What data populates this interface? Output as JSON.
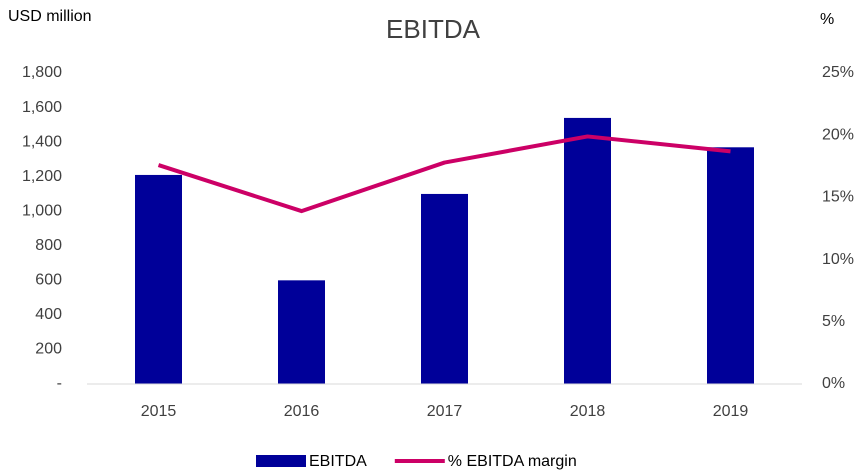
{
  "chart_data": {
    "type": "bar",
    "title": "EBITDA",
    "y_label": "USD million",
    "y2_label": "%",
    "categories": [
      "2015",
      "2016",
      "2017",
      "2018",
      "2019"
    ],
    "series": [
      {
        "name": "EBITDA",
        "type": "bar",
        "color": "#000099",
        "values": [
          1210,
          600,
          1100,
          1540,
          1370
        ]
      },
      {
        "name": "% EBITDA margin",
        "type": "line",
        "axis": "y2",
        "color": "#cc0066",
        "values": [
          17.6,
          13.9,
          17.8,
          19.9,
          18.7
        ]
      }
    ],
    "ylim": [
      0,
      1800
    ],
    "yticks": [
      {
        "value": 0,
        "label": "-"
      },
      200,
      400,
      600,
      800,
      {
        "value": 1000,
        "label": "1,000"
      },
      {
        "value": 1200,
        "label": "1,200"
      },
      {
        "value": 1400,
        "label": "1,400"
      },
      {
        "value": 1600,
        "label": "1,600"
      },
      {
        "value": 1800,
        "label": "1,800"
      }
    ],
    "y2lim": [
      0,
      25
    ],
    "y2ticks": [
      {
        "value": 0,
        "label": "0%"
      },
      {
        "value": 5,
        "label": "5%"
      },
      {
        "value": 10,
        "label": "10%"
      },
      {
        "value": 15,
        "label": "15%"
      },
      {
        "value": 20,
        "label": "20%"
      },
      {
        "value": 25,
        "label": "25%"
      }
    ],
    "legend": "bottom"
  }
}
